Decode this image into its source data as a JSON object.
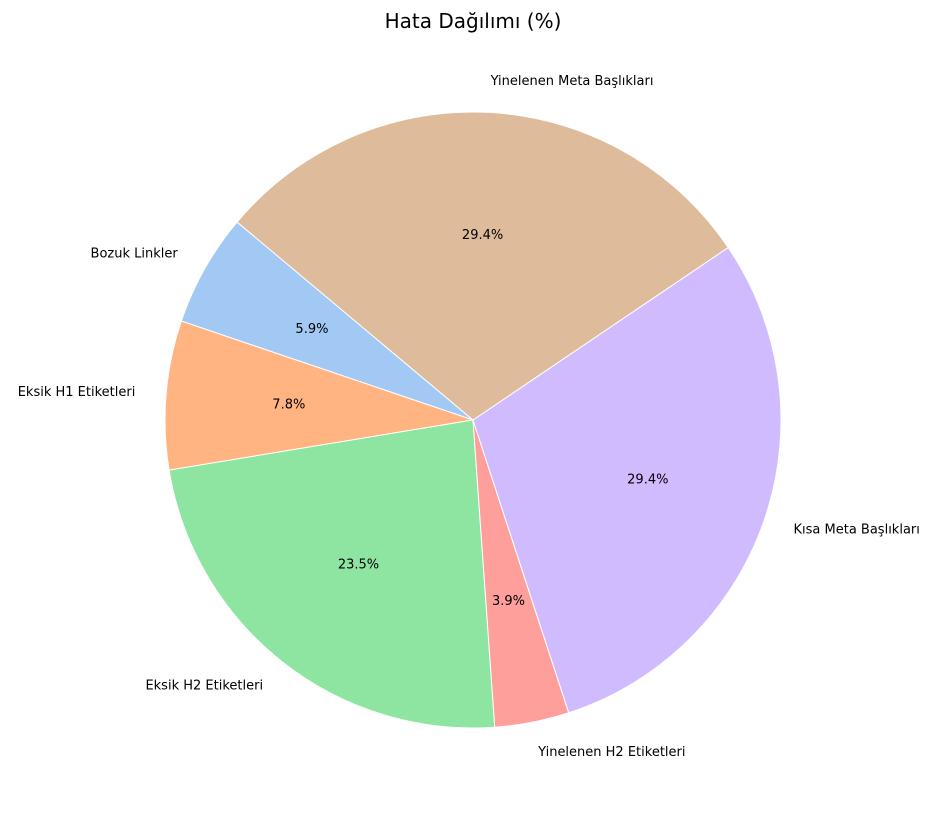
{
  "chart_data": {
    "type": "pie",
    "title": "Hata Dağılımı (%)",
    "start_angle": 140,
    "direction": "counterclockwise",
    "slices": [
      {
        "label": "Bozuk Linkler",
        "value": 5.9,
        "pct_label": "5.9%",
        "color": "#a1c9f4"
      },
      {
        "label": "Eksik H1 Etiketleri",
        "value": 7.8,
        "pct_label": "7.8%",
        "color": "#ffb482"
      },
      {
        "label": "Eksik H2 Etiketleri",
        "value": 23.5,
        "pct_label": "23.5%",
        "color": "#8de5a1"
      },
      {
        "label": "Yinelenen H2 Etiketleri",
        "value": 3.9,
        "pct_label": "3.9%",
        "color": "#ff9f9b"
      },
      {
        "label": "Kısa Meta Başlıkları",
        "value": 29.4,
        "pct_label": "29.4%",
        "color": "#d0bbff"
      },
      {
        "label": "Yinelenen Meta Başlıkları",
        "value": 29.4,
        "pct_label": "29.4%",
        "color": "#debb9b"
      }
    ]
  }
}
